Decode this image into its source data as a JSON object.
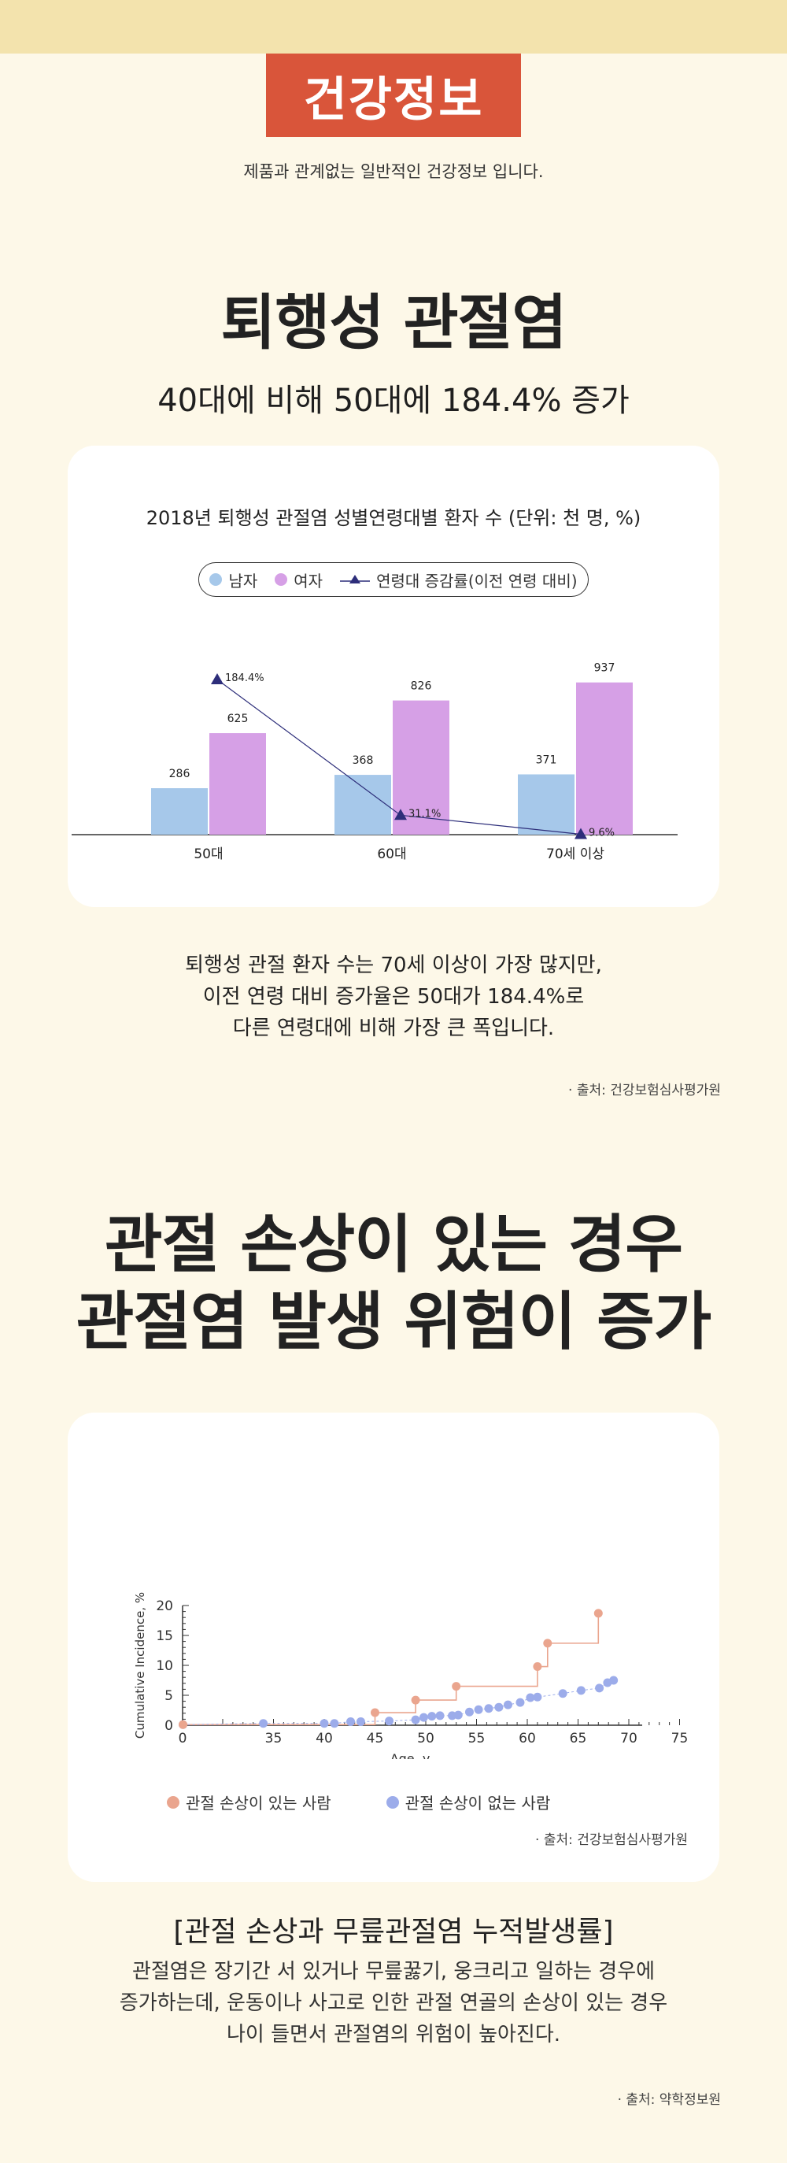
{
  "header": {
    "badge": "건강정보",
    "subtitle": "제품과 관계없는 일반적인 건강정보 입니다."
  },
  "section1": {
    "title": "퇴행성 관절염",
    "subtitle": "40대에 비해 50대에 184.4% 증가",
    "chart_title": "2018년 퇴행성 관절염 성별연령대별 환자 수 (단위: 천 명, %)",
    "description": [
      "퇴행성 관절 환자 수는 70세 이상이 가장 많지만,",
      "이전 연령 대비 증가율은 50대가 184.4%로",
      "다른 연령대에 비해 가장 큰 폭입니다."
    ],
    "source": "· 출처: 건강보험심사평가원"
  },
  "section2": {
    "title_lines": [
      "관절 손상이 있는 경우",
      "관절염 발생 위험이 증가"
    ],
    "chart_source": "· 출처: 건강보험심사평가원",
    "heading": "[관절 손상과 무릎관절염 누적발생률]",
    "description": [
      "관절염은 장기간 서 있거나 무릎꿇기, 웅크리고 일하는 경우에",
      "증가하는데, 운동이나 사고로 인한 관절 연골의 손상이 있는 경우",
      "나이 들면서 관절염의 위험이 높아진다."
    ],
    "source": "· 출처: 약학정보원"
  },
  "colors": {
    "male": "#a6c8ea",
    "female": "#d6a0e6",
    "growth_line": "#2d2e7a",
    "injury": "#eaa58e",
    "no_injury": "#9cacea",
    "badge": "#d9553a"
  },
  "chart_data": [
    {
      "type": "bar",
      "title": "2018년 퇴행성 관절염 성별연령대별 환자 수 (단위: 천 명, %)",
      "categories": [
        "50대",
        "60대",
        "70세 이상"
      ],
      "series": [
        {
          "name": "남자",
          "values": [
            286,
            368,
            371
          ],
          "labels": [
            "286",
            "368",
            "371"
          ]
        },
        {
          "name": "여자",
          "values": [
            625,
            826,
            937
          ],
          "labels": [
            "625",
            "826",
            "937"
          ]
        },
        {
          "name": "연령대 증감률(이전 연령 대비)",
          "values": [
            184.4,
            31.1,
            9.6
          ],
          "labels": [
            "184.4%",
            "31.1%",
            "9.6%"
          ]
        }
      ],
      "legend_position": "top",
      "grid": false
    },
    {
      "type": "scatter",
      "xlabel": "Age, y",
      "ylabel": "Cumulative Incidence, %",
      "xlim": [
        0,
        75
      ],
      "ylim": [
        0,
        20
      ],
      "x_ticks": [
        "0",
        "35",
        "40",
        "45",
        "50",
        "55",
        "60",
        "65",
        "70",
        "75"
      ],
      "y_ticks": [
        "0",
        "5",
        "10",
        "15",
        "20"
      ],
      "series": [
        {
          "name": "관절 손상이 있는 사람",
          "points": [
            [
              0.3,
              0.1
            ],
            [
              45,
              2.1
            ],
            [
              49,
              4.2
            ],
            [
              53,
              6.5
            ],
            [
              61,
              9.8
            ],
            [
              62,
              13.7
            ],
            [
              67,
              18.7
            ]
          ]
        },
        {
          "name": "관절 손상이 없는 사람",
          "points": [
            [
              0.3,
              0.1
            ],
            [
              34,
              0.3
            ],
            [
              40,
              0.3
            ],
            [
              41,
              0.3
            ],
            [
              42.6,
              0.6
            ],
            [
              43.6,
              0.6
            ],
            [
              46.4,
              0.7
            ],
            [
              49,
              0.9
            ],
            [
              49.8,
              1.3
            ],
            [
              50.6,
              1.5
            ],
            [
              51.4,
              1.6
            ],
            [
              52.6,
              1.6
            ],
            [
              53.2,
              1.7
            ],
            [
              54.3,
              2.2
            ],
            [
              55.2,
              2.6
            ],
            [
              56.2,
              2.8
            ],
            [
              57.2,
              3.0
            ],
            [
              58.1,
              3.4
            ],
            [
              59.3,
              3.8
            ],
            [
              60.3,
              4.6
            ],
            [
              61,
              4.7
            ],
            [
              63.5,
              5.3
            ],
            [
              65.3,
              5.8
            ],
            [
              67.1,
              6.2
            ],
            [
              67.9,
              7.1
            ],
            [
              68.5,
              7.5
            ]
          ]
        }
      ],
      "legend_position": "bottom",
      "grid": false
    }
  ]
}
